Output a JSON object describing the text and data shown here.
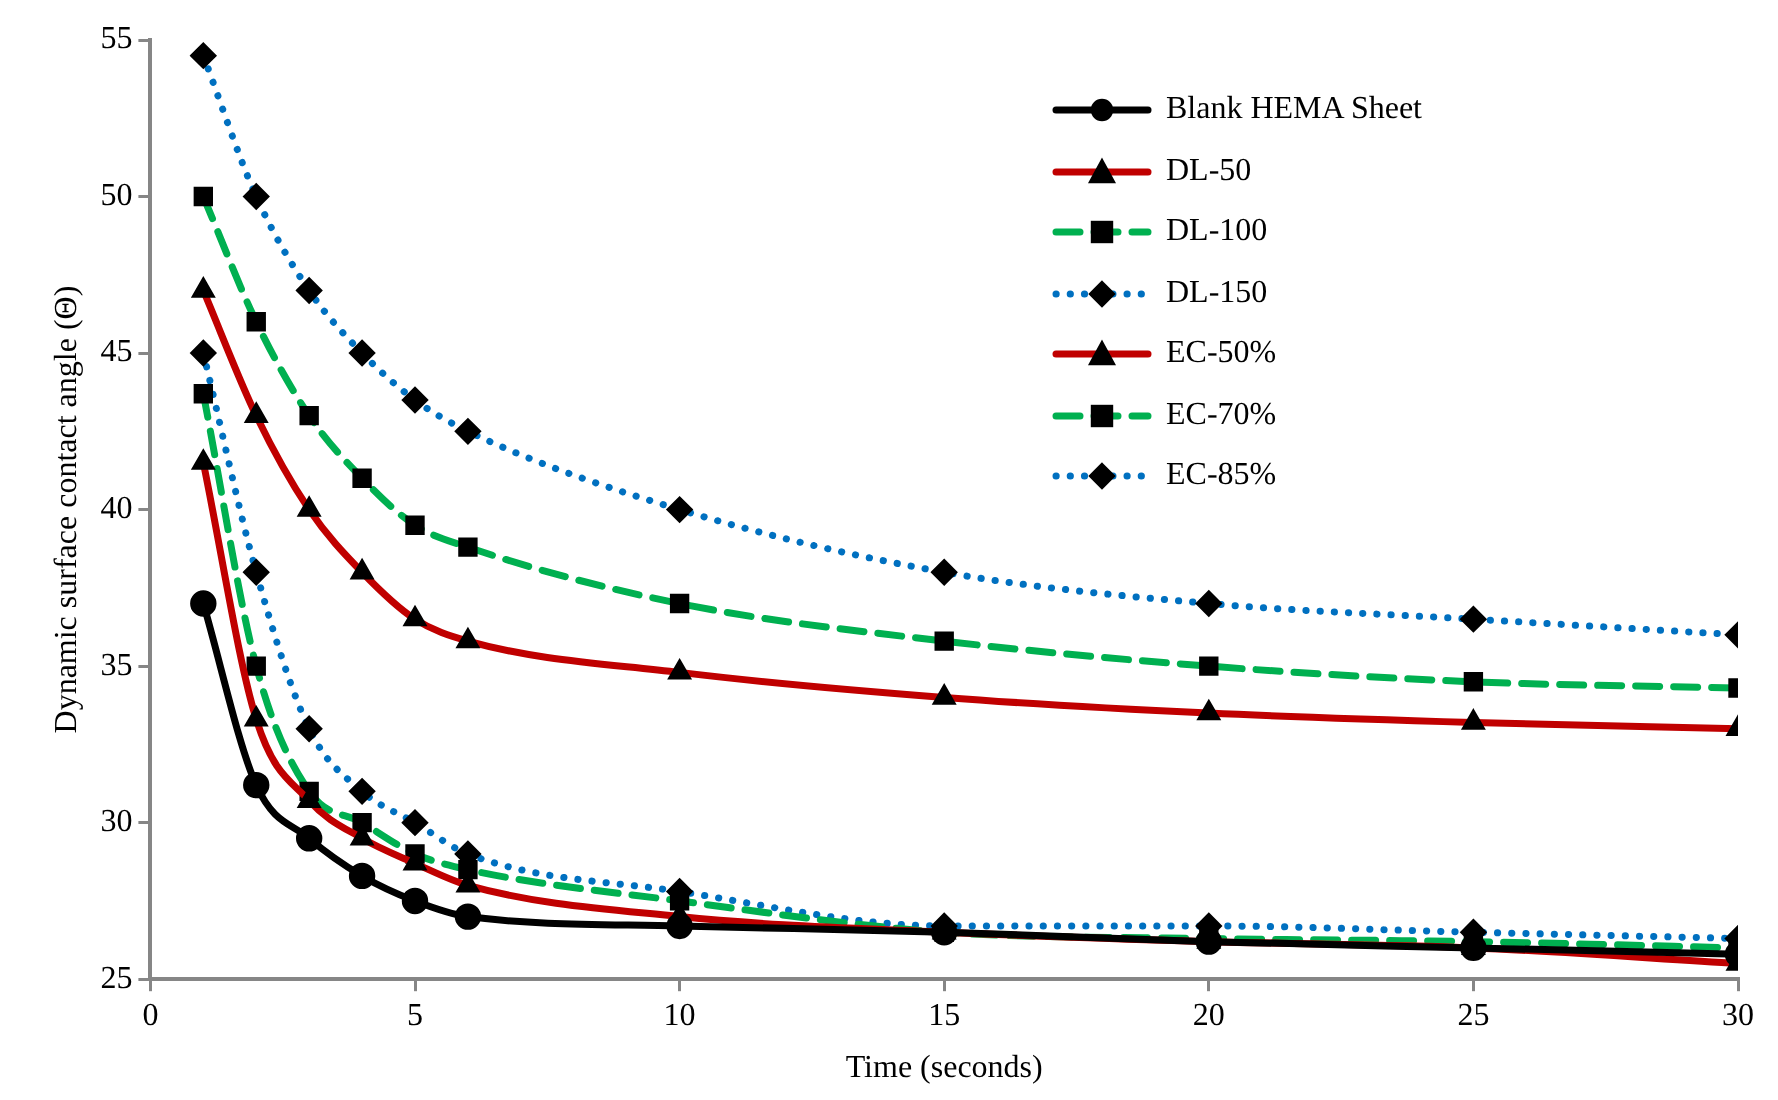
{
  "chart_data": {
    "type": "line",
    "xlabel": "Time (seconds)",
    "ylabel": "Dynamic surface contact angle (Θ)",
    "x": [
      1,
      2,
      3,
      4,
      5,
      6,
      10,
      15,
      20,
      25,
      30
    ],
    "xlim": [
      0,
      30
    ],
    "xticks": [
      0,
      5,
      10,
      15,
      20,
      25,
      30
    ],
    "ylim": [
      25,
      55
    ],
    "yticks": [
      25,
      30,
      35,
      40,
      45,
      50,
      55
    ],
    "grid": false,
    "legend": "top right",
    "series": [
      {
        "name": "Blank HEMA Sheet",
        "color": "#000000",
        "marker": "circle",
        "line_style": "solid",
        "values": [
          37,
          31.2,
          29.5,
          28.3,
          27.5,
          27.0,
          26.7,
          26.5,
          26.2,
          26.0,
          25.8
        ]
      },
      {
        "name": "DL-50",
        "color": "#c00000",
        "marker": "triangle",
        "line_style": "solid",
        "values": [
          41.5,
          33.3,
          30.7,
          29.5,
          28.7,
          28.0,
          27.0,
          26.5,
          26.2,
          26.0,
          25.5
        ]
      },
      {
        "name": "DL-100",
        "color": "#00b050",
        "marker": "square",
        "line_style": "dashed",
        "values": [
          43.7,
          35,
          31,
          30,
          29,
          28.5,
          27.5,
          26.5,
          26.3,
          26.2,
          26.0
        ]
      },
      {
        "name": "DL-150",
        "color": "#0070c0",
        "marker": "diamond",
        "line_style": "dotted",
        "values": [
          45,
          38,
          33,
          31,
          30,
          29,
          27.8,
          26.7,
          26.7,
          26.5,
          26.3
        ]
      },
      {
        "name": "EC-50%",
        "color": "#c00000",
        "marker": "triangle",
        "line_style": "solid",
        "values": [
          47,
          43,
          40,
          38,
          36.5,
          35.8,
          34.8,
          34,
          33.5,
          33.2,
          33
        ]
      },
      {
        "name": "EC-70%",
        "color": "#00b050",
        "marker": "square",
        "line_style": "dashed",
        "values": [
          50,
          46,
          43,
          41,
          39.5,
          38.8,
          37,
          35.8,
          35,
          34.5,
          34.3
        ]
      },
      {
        "name": "EC-85%",
        "color": "#0070c0",
        "marker": "diamond",
        "line_style": "dotted",
        "values": [
          54.5,
          50,
          47,
          45,
          43.5,
          42.5,
          40,
          38,
          37,
          36.5,
          36
        ]
      }
    ]
  }
}
